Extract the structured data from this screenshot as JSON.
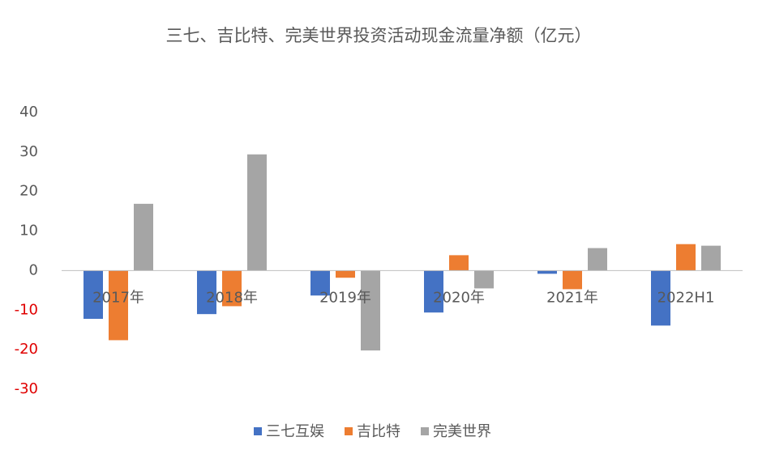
{
  "chart_data": {
    "type": "bar",
    "title": "三七、吉比特、完美世界投资活动现金流量净额（亿元）",
    "categories": [
      "2017年",
      "2018年",
      "2019年",
      "2020年",
      "2021年",
      "2022H1"
    ],
    "series": [
      {
        "name": "三七互娱",
        "color": "#4472c4",
        "values": [
          -12.2,
          -11.0,
          -6.3,
          -10.6,
          -0.8,
          -13.9
        ]
      },
      {
        "name": "吉比特",
        "color": "#ed7d31",
        "values": [
          -17.6,
          -9.0,
          -1.8,
          3.9,
          -4.7,
          6.7
        ]
      },
      {
        "name": "完美世界",
        "color": "#a5a5a5",
        "values": [
          16.9,
          29.4,
          -20.2,
          -4.5,
          5.7,
          6.3
        ]
      }
    ],
    "ylim": [
      -30,
      40
    ],
    "yticks": [
      -30,
      -20,
      -10,
      0,
      10,
      20,
      30,
      40
    ],
    "negative_tick_color": "#e00000",
    "grid": false,
    "legend": "bottom"
  }
}
